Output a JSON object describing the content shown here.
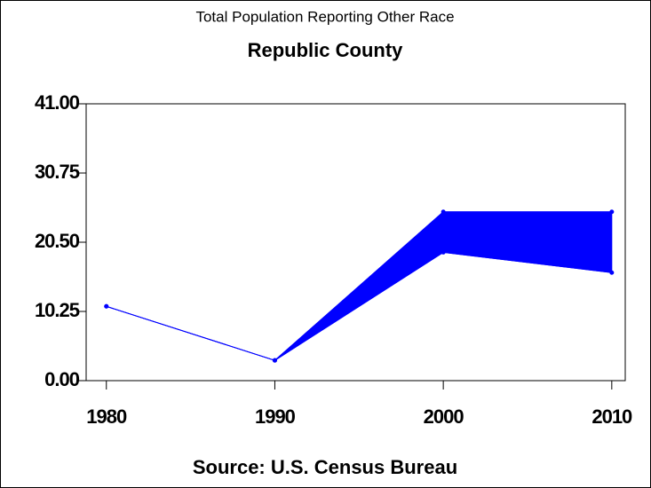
{
  "chart_data": {
    "type": "band-line",
    "title": "Total Population Reporting Other Race",
    "subtitle": "Republic County",
    "footnote": "Source: U.S. Census Bureau",
    "x": [
      1980,
      1990,
      2000,
      2010
    ],
    "series": [
      {
        "color": "#0000ff",
        "values": [
          11,
          3,
          25,
          25
        ]
      },
      {
        "color": "#0000ff",
        "values": [
          11,
          3,
          19,
          16
        ]
      }
    ],
    "xlim": [
      1978.8,
      2010.8
    ],
    "xticks": [
      1980,
      1990,
      2000,
      2010
    ],
    "ylim": [
      0,
      41
    ],
    "yticks": [
      {
        "value": 0,
        "label": "0.00"
      },
      10.25,
      {
        "value": 20.5,
        "label": "20.50"
      },
      30.75,
      {
        "value": 41,
        "label": "41.00"
      }
    ]
  }
}
